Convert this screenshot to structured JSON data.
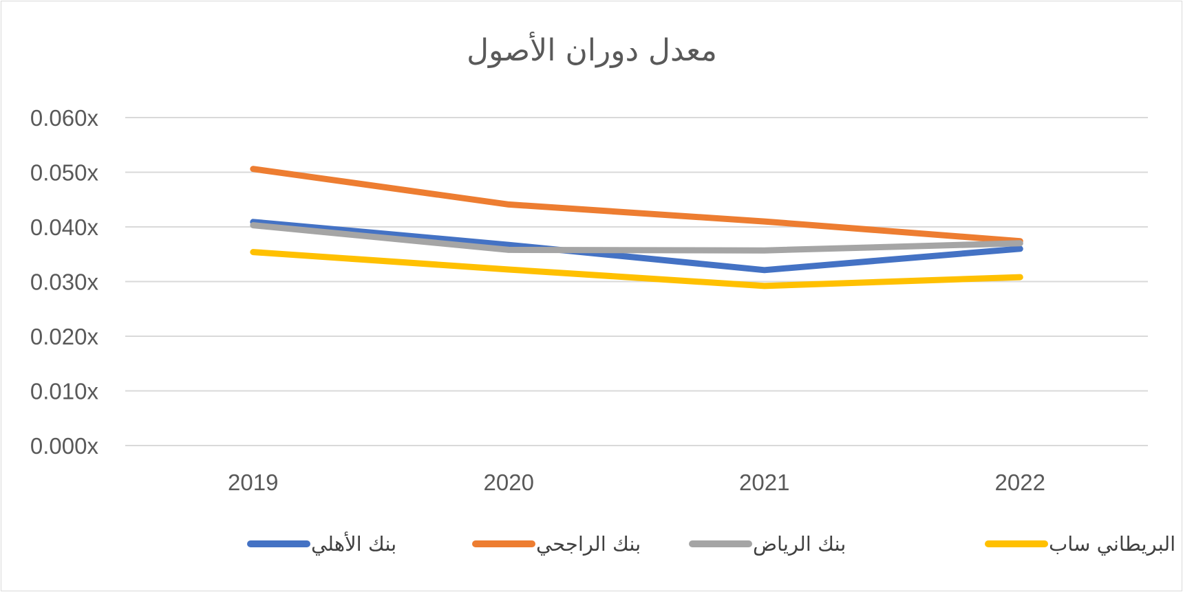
{
  "chart_data": {
    "type": "line",
    "title": "معدل دوران الأصول",
    "xlabel": "",
    "ylabel": "",
    "categories": [
      "2019",
      "2020",
      "2021",
      "2022"
    ],
    "ylim": [
      0,
      0.06
    ],
    "y_ticks": [
      "0.000x",
      "0.010x",
      "0.020x",
      "0.030x",
      "0.040x",
      "0.050x",
      "0.060x"
    ],
    "grid": true,
    "legend_position": "bottom",
    "series": [
      {
        "name": "بنك الأهلي",
        "color": "#4472c4",
        "values": [
          0.0409,
          0.0367,
          0.0321,
          0.036
        ]
      },
      {
        "name": "بنك الراجحي",
        "color": "#ed7d31",
        "values": [
          0.0506,
          0.0441,
          0.041,
          0.0374
        ]
      },
      {
        "name": "بنك الرياض",
        "color": "#a5a5a5",
        "values": [
          0.0403,
          0.0358,
          0.0357,
          0.037
        ]
      },
      {
        "name": "البنك البريطاني ساب",
        "color": "#ffc000",
        "values": [
          0.0354,
          0.0322,
          0.0292,
          0.0308
        ]
      }
    ]
  }
}
